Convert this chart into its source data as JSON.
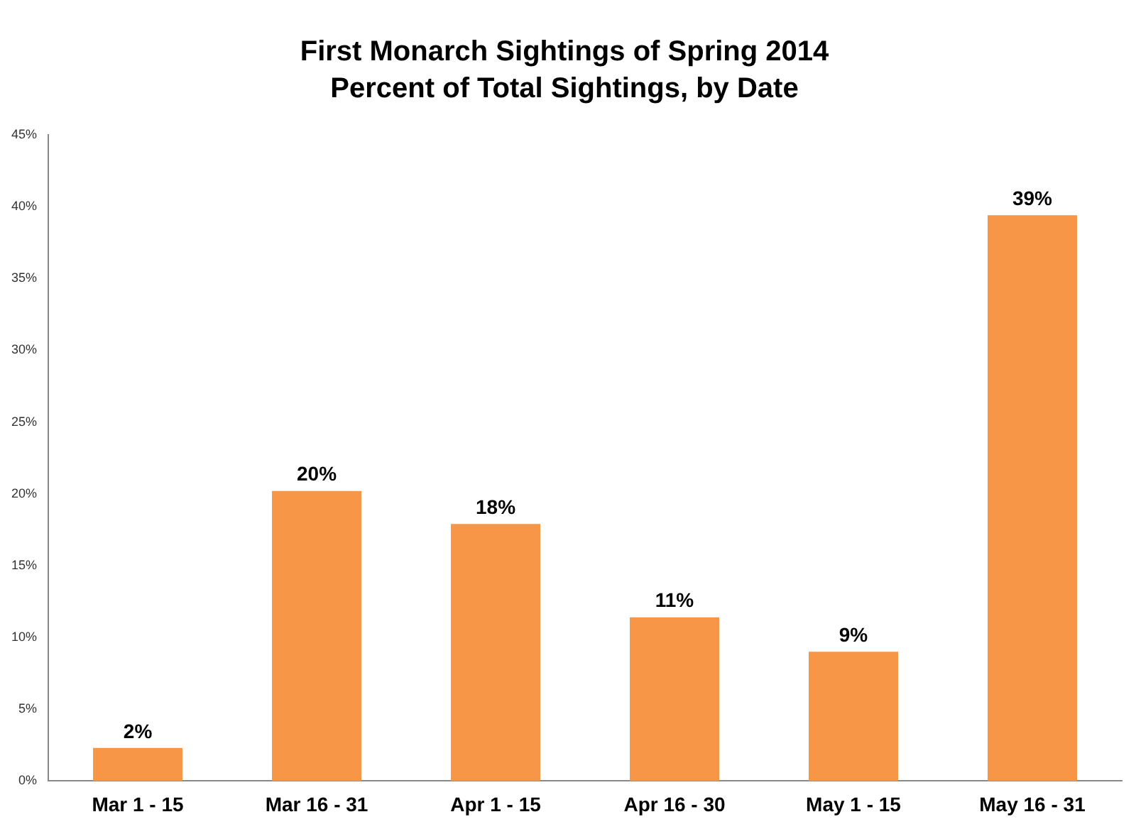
{
  "chart_data": {
    "type": "bar",
    "title": "First Monarch Sightings of Spring 2014",
    "subtitle": "Percent of Total Sightings, by Date",
    "categories": [
      "Mar 1 - 15",
      "Mar 16 - 31",
      "Apr 1 - 15",
      "Apr 16 - 30",
      "May 1 - 15",
      "May 16 - 31"
    ],
    "values": [
      2.3,
      20.2,
      17.9,
      11.4,
      9.0,
      39.4
    ],
    "value_labels": [
      "2%",
      "20%",
      "18%",
      "11%",
      "9%",
      "39%"
    ],
    "color": "#f79646",
    "ylim": [
      0,
      45
    ],
    "yticks": [
      {
        "value": 0,
        "label": "0%"
      },
      {
        "value": 5,
        "label": "5%"
      },
      {
        "value": 10,
        "label": "10%"
      },
      {
        "value": 15,
        "label": "15%"
      },
      {
        "value": 20,
        "label": "20%"
      },
      {
        "value": 25,
        "label": "25%"
      },
      {
        "value": 30,
        "label": "30%"
      },
      {
        "value": 35,
        "label": "35%"
      },
      {
        "value": 40,
        "label": "40%"
      },
      {
        "value": 45,
        "label": "45%"
      }
    ],
    "grid": false,
    "legend": false
  }
}
